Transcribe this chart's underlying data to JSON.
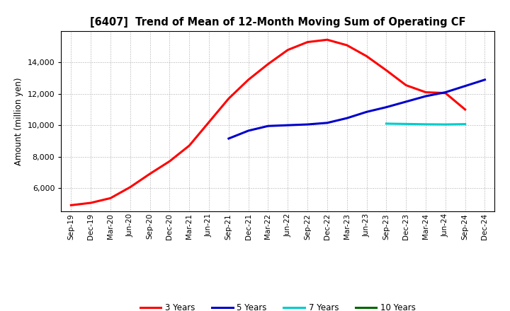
{
  "title": "[6407]  Trend of Mean of 12-Month Moving Sum of Operating CF",
  "ylabel": "Amount (million yen)",
  "background_color": "#ffffff",
  "grid_color": "#aaaaaa",
  "ylim": [
    4500,
    16000
  ],
  "yticks": [
    6000,
    8000,
    10000,
    12000,
    14000
  ],
  "x_labels": [
    "Sep-19",
    "Dec-19",
    "Mar-20",
    "Jun-20",
    "Sep-20",
    "Dec-20",
    "Mar-21",
    "Jun-21",
    "Sep-21",
    "Dec-21",
    "Mar-22",
    "Jun-22",
    "Sep-22",
    "Dec-22",
    "Mar-23",
    "Jun-23",
    "Sep-23",
    "Dec-23",
    "Mar-24",
    "Jun-24",
    "Sep-24",
    "Dec-24"
  ],
  "series_3yr": {
    "color": "#ff0000",
    "label": "3 Years",
    "x_indices": [
      0,
      1,
      2,
      3,
      4,
      5,
      6,
      7,
      8,
      9,
      10,
      11,
      12,
      13,
      14,
      15,
      16,
      17,
      18,
      19,
      20
    ],
    "values": [
      4900,
      5050,
      5350,
      6050,
      6900,
      7700,
      8700,
      10200,
      11700,
      12900,
      13900,
      14800,
      15300,
      15450,
      15100,
      14400,
      13500,
      12550,
      12100,
      12050,
      11000
    ]
  },
  "series_5yr": {
    "color": "#0000cc",
    "label": "5 Years",
    "x_indices": [
      8,
      9,
      10,
      11,
      12,
      13,
      14,
      15,
      16,
      17,
      18,
      19,
      20,
      21
    ],
    "values": [
      9150,
      9650,
      9950,
      10000,
      10050,
      10150,
      10450,
      10850,
      11150,
      11500,
      11850,
      12100,
      12500,
      12900
    ]
  },
  "series_7yr": {
    "color": "#00cccc",
    "label": "7 Years",
    "x_indices": [
      16,
      17,
      18,
      19,
      20
    ],
    "values": [
      10100,
      10080,
      10060,
      10050,
      10070
    ]
  },
  "series_10yr": {
    "color": "#006600",
    "label": "10 Years",
    "x_indices": [],
    "values": []
  },
  "legend_items": [
    {
      "label": "3 Years",
      "color": "#ff0000"
    },
    {
      "label": "5 Years",
      "color": "#0000cc"
    },
    {
      "label": "7 Years",
      "color": "#00cccc"
    },
    {
      "label": "10 Years",
      "color": "#006600"
    }
  ]
}
